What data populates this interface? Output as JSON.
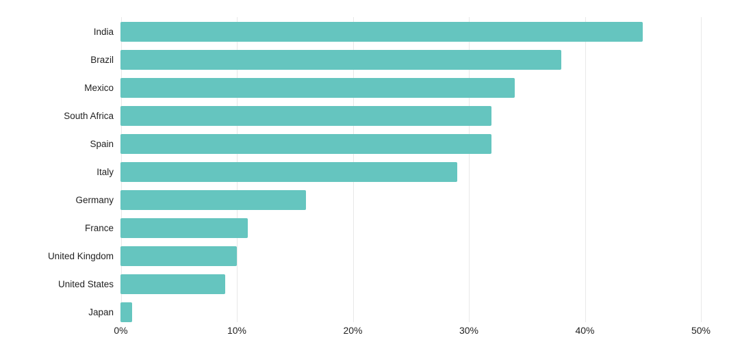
{
  "chart_data": {
    "type": "bar",
    "orientation": "horizontal",
    "title": "",
    "xlabel": "",
    "ylabel": "",
    "categories": [
      "India",
      "Brazil",
      "Mexico",
      "South Africa",
      "Spain",
      "Italy",
      "Germany",
      "France",
      "United Kingdom",
      "United States",
      "Japan"
    ],
    "values": [
      45,
      38,
      34,
      32,
      32,
      29,
      16,
      11,
      10,
      9,
      1
    ],
    "value_unit": "%",
    "xlim": [
      0,
      50
    ],
    "x_ticks": [
      0,
      10,
      20,
      30,
      40,
      50
    ],
    "x_tick_labels": [
      "0%",
      "10%",
      "20%",
      "30%",
      "40%",
      "50%"
    ],
    "grid": "vertical-only",
    "legend": "none",
    "colors": {
      "bar": "#65c5bf",
      "gridline": "#e8e8e8",
      "text": "#1f1f1f",
      "background": "#ffffff"
    }
  }
}
